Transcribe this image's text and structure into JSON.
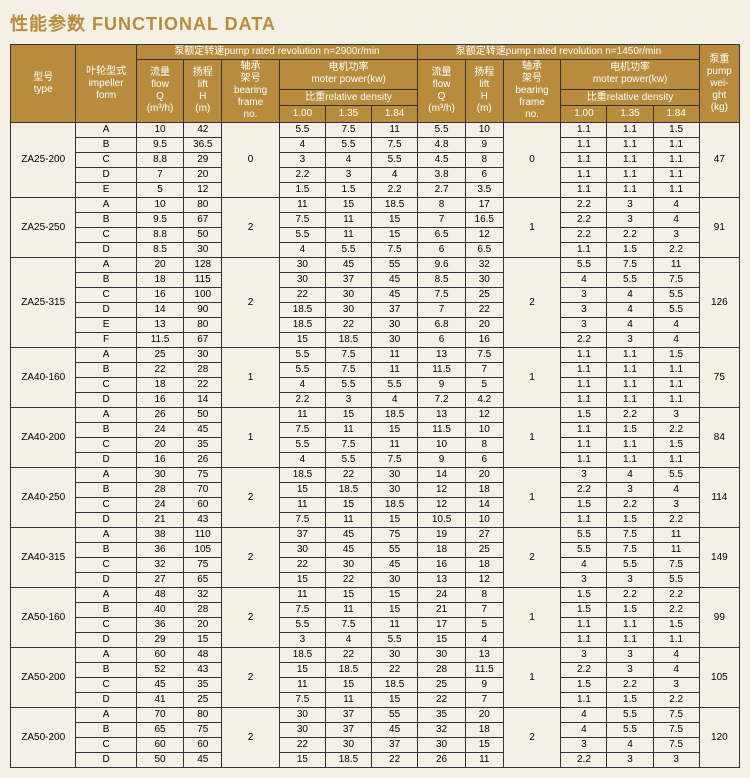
{
  "title": "性能参数 FUNCTIONAL DATA",
  "headers": {
    "type": "型号\ntype",
    "impeller": "叶轮型式\nimpeller\nform",
    "rev1_title": "泵额定转速pump rated revolution   n=2900r/min",
    "rev2_title": "泵额定转速pump rated revolution   n=1450r/min",
    "flow": "流量\nflow\nQ\n(m³/h)",
    "lift": "扬程\nlift\nH\n(m)",
    "bearing": "轴承\n架号\nbearing\nframe\nno.",
    "motor": "电机功率\nmoter power(kw)",
    "density": "比重relative density",
    "d1": "1.00",
    "d2": "1.35",
    "d3": "1.84",
    "weight": "泵重\npump\nwei-\nght\n(kg)"
  },
  "groups": [
    {
      "type": "ZA25-200",
      "bearing1": "0",
      "bearing2": "0",
      "weight": "47",
      "rows": [
        {
          "imp": "A",
          "q1": "10",
          "h1": "42",
          "p11": "5.5",
          "p12": "7.5",
          "p13": "11",
          "q2": "5.5",
          "h2": "10",
          "p21": "1.1",
          "p22": "1.1",
          "p23": "1.5"
        },
        {
          "imp": "B",
          "q1": "9.5",
          "h1": "36.5",
          "p11": "4",
          "p12": "5.5",
          "p13": "7.5",
          "q2": "4.8",
          "h2": "9",
          "p21": "1.1",
          "p22": "1.1",
          "p23": "1.1"
        },
        {
          "imp": "C",
          "q1": "8.8",
          "h1": "29",
          "p11": "3",
          "p12": "4",
          "p13": "5.5",
          "q2": "4.5",
          "h2": "8",
          "p21": "1.1",
          "p22": "1.1",
          "p23": "1.1"
        },
        {
          "imp": "D",
          "q1": "7",
          "h1": "20",
          "p11": "2.2",
          "p12": "3",
          "p13": "4",
          "q2": "3.8",
          "h2": "6",
          "p21": "1.1",
          "p22": "1.1",
          "p23": "1.1"
        },
        {
          "imp": "E",
          "q1": "5",
          "h1": "12",
          "p11": "1.5",
          "p12": "1.5",
          "p13": "2.2",
          "q2": "2.7",
          "h2": "3.5",
          "p21": "1.1",
          "p22": "1.1",
          "p23": "1.1"
        }
      ]
    },
    {
      "type": "ZA25-250",
      "bearing1": "2",
      "bearing2": "1",
      "weight": "91",
      "rows": [
        {
          "imp": "A",
          "q1": "10",
          "h1": "80",
          "p11": "11",
          "p12": "15",
          "p13": "18.5",
          "q2": "8",
          "h2": "17",
          "p21": "2.2",
          "p22": "3",
          "p23": "4"
        },
        {
          "imp": "B",
          "q1": "9.5",
          "h1": "67",
          "p11": "7.5",
          "p12": "11",
          "p13": "15",
          "q2": "7",
          "h2": "16.5",
          "p21": "2.2",
          "p22": "3",
          "p23": "4"
        },
        {
          "imp": "C",
          "q1": "8.8",
          "h1": "50",
          "p11": "5.5",
          "p12": "11",
          "p13": "15",
          "q2": "6.5",
          "h2": "12",
          "p21": "2.2",
          "p22": "2.2",
          "p23": "3"
        },
        {
          "imp": "D",
          "q1": "8.5",
          "h1": "30",
          "p11": "4",
          "p12": "5.5",
          "p13": "7.5",
          "q2": "6",
          "h2": "6.5",
          "p21": "1.1",
          "p22": "1.5",
          "p23": "2.2"
        }
      ]
    },
    {
      "type": "ZA25-315",
      "bearing1": "2",
      "bearing2": "2",
      "weight": "126",
      "rows": [
        {
          "imp": "A",
          "q1": "20",
          "h1": "128",
          "p11": "30",
          "p12": "45",
          "p13": "55",
          "q2": "9.6",
          "h2": "32",
          "p21": "5.5",
          "p22": "7.5",
          "p23": "11"
        },
        {
          "imp": "B",
          "q1": "18",
          "h1": "115",
          "p11": "30",
          "p12": "37",
          "p13": "45",
          "q2": "8.5",
          "h2": "30",
          "p21": "4",
          "p22": "5.5",
          "p23": "7.5"
        },
        {
          "imp": "C",
          "q1": "16",
          "h1": "100",
          "p11": "22",
          "p12": "30",
          "p13": "45",
          "q2": "7.5",
          "h2": "25",
          "p21": "3",
          "p22": "4",
          "p23": "5.5"
        },
        {
          "imp": "D",
          "q1": "14",
          "h1": "90",
          "p11": "18.5",
          "p12": "30",
          "p13": "37",
          "q2": "7",
          "h2": "22",
          "p21": "3",
          "p22": "4",
          "p23": "5.5"
        },
        {
          "imp": "E",
          "q1": "13",
          "h1": "80",
          "p11": "18.5",
          "p12": "22",
          "p13": "30",
          "q2": "6.8",
          "h2": "20",
          "p21": "3",
          "p22": "4",
          "p23": "4"
        },
        {
          "imp": "F",
          "q1": "11.5",
          "h1": "67",
          "p11": "15",
          "p12": "18.5",
          "p13": "30",
          "q2": "6",
          "h2": "16",
          "p21": "2.2",
          "p22": "3",
          "p23": "4"
        }
      ]
    },
    {
      "type": "ZA40-160",
      "bearing1": "1",
      "bearing2": "1",
      "weight": "75",
      "rows": [
        {
          "imp": "A",
          "q1": "25",
          "h1": "30",
          "p11": "5.5",
          "p12": "7.5",
          "p13": "11",
          "q2": "13",
          "h2": "7.5",
          "p21": "1.1",
          "p22": "1.1",
          "p23": "1.5"
        },
        {
          "imp": "B",
          "q1": "22",
          "h1": "28",
          "p11": "5.5",
          "p12": "7.5",
          "p13": "11",
          "q2": "11.5",
          "h2": "7",
          "p21": "1.1",
          "p22": "1.1",
          "p23": "1.1"
        },
        {
          "imp": "C",
          "q1": "18",
          "h1": "22",
          "p11": "4",
          "p12": "5.5",
          "p13": "5.5",
          "q2": "9",
          "h2": "5",
          "p21": "1.1",
          "p22": "1.1",
          "p23": "1.1"
        },
        {
          "imp": "D",
          "q1": "16",
          "h1": "14",
          "p11": "2.2",
          "p12": "3",
          "p13": "4",
          "q2": "7.2",
          "h2": "4.2",
          "p21": "1.1",
          "p22": "1.1",
          "p23": "1.1"
        }
      ]
    },
    {
      "type": "ZA40-200",
      "bearing1": "1",
      "bearing2": "1",
      "weight": "84",
      "rows": [
        {
          "imp": "A",
          "q1": "26",
          "h1": "50",
          "p11": "11",
          "p12": "15",
          "p13": "18.5",
          "q2": "13",
          "h2": "12",
          "p21": "1.5",
          "p22": "2.2",
          "p23": "3"
        },
        {
          "imp": "B",
          "q1": "24",
          "h1": "45",
          "p11": "7.5",
          "p12": "11",
          "p13": "15",
          "q2": "11.5",
          "h2": "10",
          "p21": "1.1",
          "p22": "1.5",
          "p23": "2.2"
        },
        {
          "imp": "C",
          "q1": "20",
          "h1": "35",
          "p11": "5.5",
          "p12": "7.5",
          "p13": "11",
          "q2": "10",
          "h2": "8",
          "p21": "1.1",
          "p22": "1.1",
          "p23": "1.5"
        },
        {
          "imp": "D",
          "q1": "16",
          "h1": "26",
          "p11": "4",
          "p12": "5.5",
          "p13": "7.5",
          "q2": "9",
          "h2": "6",
          "p21": "1.1",
          "p22": "1.1",
          "p23": "1.1"
        }
      ]
    },
    {
      "type": "ZA40-250",
      "bearing1": "2",
      "bearing2": "1",
      "weight": "114",
      "rows": [
        {
          "imp": "A",
          "q1": "30",
          "h1": "75",
          "p11": "18.5",
          "p12": "22",
          "p13": "30",
          "q2": "14",
          "h2": "20",
          "p21": "3",
          "p22": "4",
          "p23": "5.5"
        },
        {
          "imp": "B",
          "q1": "28",
          "h1": "70",
          "p11": "15",
          "p12": "18.5",
          "p13": "30",
          "q2": "12",
          "h2": "18",
          "p21": "2.2",
          "p22": "3",
          "p23": "4"
        },
        {
          "imp": "C",
          "q1": "24",
          "h1": "60",
          "p11": "11",
          "p12": "15",
          "p13": "18.5",
          "q2": "12",
          "h2": "14",
          "p21": "1.5",
          "p22": "2.2",
          "p23": "3"
        },
        {
          "imp": "D",
          "q1": "21",
          "h1": "43",
          "p11": "7.5",
          "p12": "11",
          "p13": "15",
          "q2": "10.5",
          "h2": "10",
          "p21": "1.1",
          "p22": "1.5",
          "p23": "2.2"
        }
      ]
    },
    {
      "type": "ZA40-315",
      "bearing1": "2",
      "bearing2": "2",
      "weight": "149",
      "rows": [
        {
          "imp": "A",
          "q1": "38",
          "h1": "110",
          "p11": "37",
          "p12": "45",
          "p13": "75",
          "q2": "19",
          "h2": "27",
          "p21": "5.5",
          "p22": "7.5",
          "p23": "11"
        },
        {
          "imp": "B",
          "q1": "36",
          "h1": "105",
          "p11": "30",
          "p12": "45",
          "p13": "55",
          "q2": "18",
          "h2": "25",
          "p21": "5.5",
          "p22": "7.5",
          "p23": "11"
        },
        {
          "imp": "C",
          "q1": "32",
          "h1": "75",
          "p11": "22",
          "p12": "30",
          "p13": "45",
          "q2": "16",
          "h2": "18",
          "p21": "4",
          "p22": "5.5",
          "p23": "7.5"
        },
        {
          "imp": "D",
          "q1": "27",
          "h1": "65",
          "p11": "15",
          "p12": "22",
          "p13": "30",
          "q2": "13",
          "h2": "12",
          "p21": "3",
          "p22": "3",
          "p23": "5.5"
        }
      ]
    },
    {
      "type": "ZA50-160",
      "bearing1": "2",
      "bearing2": "1",
      "weight": "99",
      "rows": [
        {
          "imp": "A",
          "q1": "48",
          "h1": "32",
          "p11": "11",
          "p12": "15",
          "p13": "15",
          "q2": "24",
          "h2": "8",
          "p21": "1.5",
          "p22": "2.2",
          "p23": "2.2"
        },
        {
          "imp": "B",
          "q1": "40",
          "h1": "28",
          "p11": "7.5",
          "p12": "11",
          "p13": "15",
          "q2": "21",
          "h2": "7",
          "p21": "1.5",
          "p22": "1.5",
          "p23": "2.2"
        },
        {
          "imp": "C",
          "q1": "36",
          "h1": "20",
          "p11": "5.5",
          "p12": "7.5",
          "p13": "11",
          "q2": "17",
          "h2": "5",
          "p21": "1.1",
          "p22": "1.1",
          "p23": "1.5"
        },
        {
          "imp": "D",
          "q1": "29",
          "h1": "15",
          "p11": "3",
          "p12": "4",
          "p13": "5.5",
          "q2": "15",
          "h2": "4",
          "p21": "1.1",
          "p22": "1.1",
          "p23": "1.1"
        }
      ]
    },
    {
      "type": "ZA50-200",
      "bearing1": "2",
      "bearing2": "1",
      "weight": "105",
      "rows": [
        {
          "imp": "A",
          "q1": "60",
          "h1": "48",
          "p11": "18.5",
          "p12": "22",
          "p13": "30",
          "q2": "30",
          "h2": "13",
          "p21": "3",
          "p22": "3",
          "p23": "4"
        },
        {
          "imp": "B",
          "q1": "52",
          "h1": "43",
          "p11": "15",
          "p12": "18.5",
          "p13": "22",
          "q2": "28",
          "h2": "11.5",
          "p21": "2.2",
          "p22": "3",
          "p23": "4"
        },
        {
          "imp": "C",
          "q1": "45",
          "h1": "35",
          "p11": "11",
          "p12": "15",
          "p13": "18.5",
          "q2": "25",
          "h2": "9",
          "p21": "1.5",
          "p22": "2.2",
          "p23": "3"
        },
        {
          "imp": "D",
          "q1": "41",
          "h1": "25",
          "p11": "7.5",
          "p12": "11",
          "p13": "15",
          "q2": "22",
          "h2": "7",
          "p21": "1.1",
          "p22": "1.5",
          "p23": "2.2"
        }
      ]
    },
    {
      "type": "ZA50-200",
      "bearing1": "2",
      "bearing2": "2",
      "weight": "120",
      "rows": [
        {
          "imp": "A",
          "q1": "70",
          "h1": "80",
          "p11": "30",
          "p12": "37",
          "p13": "55",
          "q2": "35",
          "h2": "20",
          "p21": "4",
          "p22": "5.5",
          "p23": "7.5"
        },
        {
          "imp": "B",
          "q1": "65",
          "h1": "75",
          "p11": "30",
          "p12": "37",
          "p13": "45",
          "q2": "32",
          "h2": "18",
          "p21": "4",
          "p22": "5.5",
          "p23": "7.5"
        },
        {
          "imp": "C",
          "q1": "60",
          "h1": "60",
          "p11": "22",
          "p12": "30",
          "p13": "37",
          "q2": "30",
          "h2": "15",
          "p21": "3",
          "p22": "4",
          "p23": "7.5"
        },
        {
          "imp": "D",
          "q1": "50",
          "h1": "45",
          "p11": "15",
          "p12": "18.5",
          "p13": "22",
          "q2": "26",
          "h2": "11",
          "p21": "2.2",
          "p22": "3",
          "p23": "3"
        }
      ]
    }
  ]
}
